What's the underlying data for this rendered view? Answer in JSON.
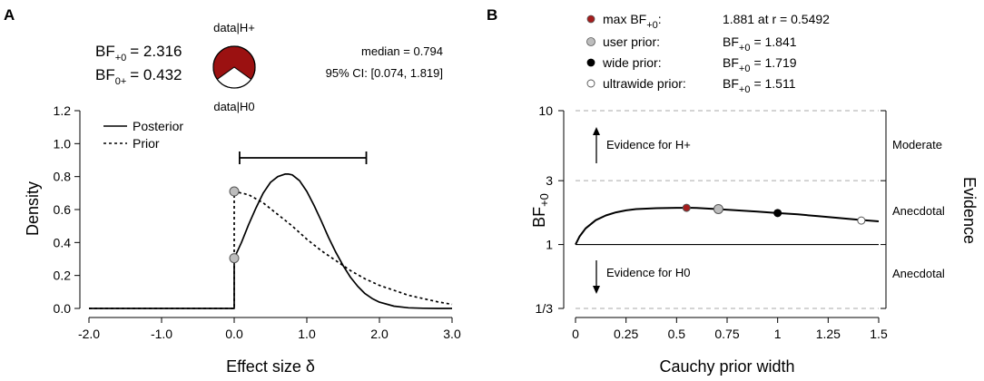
{
  "panels": {
    "a": {
      "letter": "A"
    },
    "b": {
      "letter": "B"
    }
  },
  "panel_a_header": {
    "bf_plus0": {
      "label": "BF",
      "sub": "+0",
      "value": "= 2.316"
    },
    "bf_0plus": {
      "label": "BF",
      "sub": "0+",
      "value": "= 0.432"
    },
    "pie_label_top": "data|H+",
    "pie_label_bottom": "data|H0",
    "pie_fraction_h_plus": 0.698,
    "median_text": "median = 0.794",
    "ci_text": "95% CI: [0.074, 1.819]"
  },
  "panel_b_header": {
    "rows": [
      {
        "label": "max BF",
        "label_sub": "+0",
        "label_suffix": ":",
        "value": "1.881 at r = 0.5492",
        "marker": "red"
      },
      {
        "label": "user prior:",
        "value_prefix": "BF",
        "value_sub": "+0",
        "value": "= 1.841",
        "marker": "grey"
      },
      {
        "label": "wide prior:",
        "value_prefix": "BF",
        "value_sub": "+0",
        "value": "= 1.719",
        "marker": "black"
      },
      {
        "label": "ultrawide prior:",
        "value_prefix": "BF",
        "value_sub": "+0",
        "value": "= 1.511",
        "marker": "white"
      }
    ]
  },
  "colors": {
    "red": "#a51c1c",
    "grey": "#bdbdbd",
    "black": "#000000",
    "white": "#ffffff",
    "dashed": "#aaaaaa",
    "pie_h_plus": "#9b1111",
    "pie_h0": "#ffffff"
  },
  "chart_data": [
    {
      "type": "line",
      "title": "",
      "xlabel": "Effect size δ",
      "ylabel": "Density",
      "xlim": [
        -2.0,
        3.0
      ],
      "ylim": [
        0,
        1.2
      ],
      "x_ticks": [
        "-2.0",
        "-1.0",
        "0.0",
        "1.0",
        "2.0",
        "3.0"
      ],
      "y_ticks": [
        "0.0",
        "0.2",
        "0.4",
        "0.6",
        "0.8",
        "1.0",
        "1.2"
      ],
      "legend": [
        "Posterior",
        "Prior"
      ],
      "legend_position": "top-left",
      "series": [
        {
          "name": "Posterior",
          "style": "solid",
          "x": [
            -2.0,
            0.0,
            0.0,
            0.1,
            0.2,
            0.3,
            0.4,
            0.5,
            0.6,
            0.7,
            0.75,
            0.8,
            0.9,
            1.0,
            1.1,
            1.2,
            1.3,
            1.4,
            1.5,
            1.6,
            1.7,
            1.8,
            1.9,
            2.0,
            2.2,
            2.4,
            2.6,
            2.8,
            3.0
          ],
          "y": [
            0.0,
            0.0,
            0.305,
            0.4,
            0.51,
            0.61,
            0.7,
            0.765,
            0.8,
            0.815,
            0.815,
            0.81,
            0.775,
            0.71,
            0.625,
            0.53,
            0.43,
            0.34,
            0.26,
            0.19,
            0.135,
            0.09,
            0.06,
            0.038,
            0.014,
            0.004,
            0.001,
            0.0,
            0.0
          ]
        },
        {
          "name": "Prior",
          "style": "dotted",
          "x": [
            -2.0,
            0.0,
            0.0,
            0.2,
            0.4,
            0.6,
            0.8,
            1.0,
            1.2,
            1.4,
            1.6,
            1.8,
            2.0,
            2.2,
            2.4,
            2.6,
            2.8,
            3.0
          ],
          "y": [
            0.0,
            0.0,
            0.71,
            0.69,
            0.64,
            0.57,
            0.5,
            0.42,
            0.35,
            0.29,
            0.23,
            0.18,
            0.14,
            0.11,
            0.08,
            0.06,
            0.04,
            0.025
          ]
        }
      ],
      "points": [
        {
          "name": "posterior-at-zero",
          "x": 0.0,
          "y": 0.305
        },
        {
          "name": "prior-at-zero",
          "x": 0.0,
          "y": 0.71
        }
      ],
      "credible_interval": {
        "lower": 0.074,
        "upper": 1.819
      }
    },
    {
      "type": "line",
      "title": "",
      "xlabel": "Cauchy prior width",
      "ylabel": "BF+0",
      "ylabel_main": "BF",
      "ylabel_sub": "+0",
      "right_label": "Evidence",
      "xlim": [
        0,
        1.5
      ],
      "y_scale": "log",
      "ylim": [
        0.3333,
        10
      ],
      "x_ticks": [
        "0",
        "0.25",
        "0.5",
        "0.75",
        "1",
        "1.25",
        "1.5"
      ],
      "y_ticks": [
        {
          "label": "10",
          "value": 10
        },
        {
          "label": "3",
          "value": 3
        },
        {
          "label": "1",
          "value": 1
        },
        {
          "label": "1/3",
          "value": 0.3333
        }
      ],
      "evidence_bands": [
        {
          "label": "Moderate",
          "from": 3,
          "to": 10
        },
        {
          "label": "Anecdotal",
          "from": 1,
          "to": 3
        },
        {
          "label": "Anecdotal",
          "from": 0.3333,
          "to": 1
        }
      ],
      "annotations": [
        {
          "text": "Evidence for H+",
          "direction": "up"
        },
        {
          "text": "Evidence for H0",
          "direction": "down"
        }
      ],
      "series": [
        {
          "name": "BF+0 robustness",
          "x": [
            0.0,
            0.02,
            0.05,
            0.1,
            0.15,
            0.2,
            0.25,
            0.3,
            0.4,
            0.5,
            0.55,
            0.6,
            0.7,
            0.8,
            0.9,
            1.0,
            1.1,
            1.2,
            1.3,
            1.4,
            1.5
          ],
          "y": [
            1.0,
            1.15,
            1.32,
            1.52,
            1.65,
            1.74,
            1.8,
            1.84,
            1.87,
            1.88,
            1.881,
            1.878,
            1.84,
            1.8,
            1.76,
            1.719,
            1.68,
            1.63,
            1.58,
            1.53,
            1.49
          ]
        }
      ],
      "points": [
        {
          "name": "max",
          "x": 0.5492,
          "y": 1.881,
          "color": "red"
        },
        {
          "name": "user",
          "x": 0.707,
          "y": 1.841,
          "color": "grey"
        },
        {
          "name": "wide",
          "x": 1.0,
          "y": 1.719,
          "color": "black"
        },
        {
          "name": "ultrawide",
          "x": 1.414,
          "y": 1.511,
          "color": "white"
        }
      ]
    }
  ]
}
